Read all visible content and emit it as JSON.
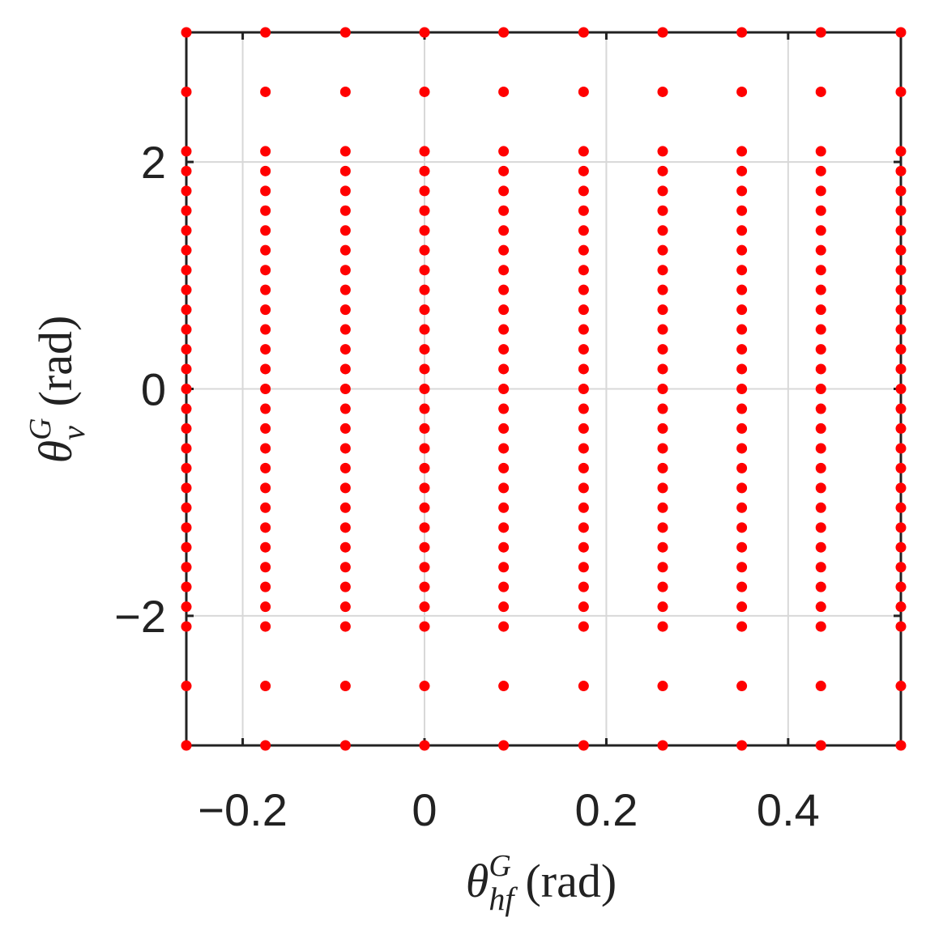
{
  "chart_data": {
    "type": "scatter",
    "xlabel": {
      "symbol": "θ",
      "sup": "G",
      "sub": "hf",
      "unit": "(rad)"
    },
    "ylabel": {
      "symbol": "θ",
      "sup": "G",
      "sub": "ν",
      "unit": "(rad)"
    },
    "color": "#ff0000",
    "xlim": [
      -0.262,
      0.524
    ],
    "ylim": [
      -3.142,
      3.142
    ],
    "xticks": [
      {
        "value": -0.2,
        "label": "−0.2"
      },
      0,
      0.2,
      0.4
    ],
    "yticks": [
      {
        "value": -2,
        "label": "−2"
      },
      0,
      2
    ],
    "grid": true,
    "columns": [
      {
        "x": -0.262,
        "y": [
          3.142,
          2.618,
          2.094,
          1.92,
          1.745,
          1.571,
          1.396,
          1.222,
          1.047,
          0.873,
          0.698,
          0.524,
          0.349,
          0.175,
          0,
          -0.175,
          -0.349,
          -0.524,
          -0.698,
          -0.873,
          -1.047,
          -1.222,
          -1.396,
          -1.571,
          -1.745,
          -1.92,
          -2.094,
          -2.618,
          -3.142
        ]
      },
      {
        "x": -0.175,
        "y": [
          3.142,
          2.618,
          2.094,
          1.92,
          1.745,
          1.571,
          1.396,
          1.222,
          1.047,
          0.873,
          0.698,
          0.524,
          0.349,
          0.175,
          0,
          -0.175,
          -0.349,
          -0.524,
          -0.698,
          -0.873,
          -1.047,
          -1.222,
          -1.396,
          -1.571,
          -1.745,
          -1.92,
          -2.094,
          -2.618,
          -3.142
        ]
      },
      {
        "x": -0.087,
        "y": [
          3.142,
          2.618,
          2.094,
          1.92,
          1.745,
          1.571,
          1.396,
          1.222,
          1.047,
          0.873,
          0.698,
          0.524,
          0.349,
          0.175,
          0,
          -0.175,
          -0.349,
          -0.524,
          -0.698,
          -0.873,
          -1.047,
          -1.222,
          -1.396,
          -1.571,
          -1.745,
          -1.92,
          -2.094,
          -2.618,
          -3.142
        ]
      },
      {
        "x": 0,
        "y": [
          3.142,
          2.618,
          2.094,
          1.92,
          1.745,
          1.571,
          1.396,
          1.222,
          1.047,
          0.873,
          0.698,
          0.524,
          0.349,
          0.175,
          0,
          -0.175,
          -0.349,
          -0.524,
          -0.698,
          -0.873,
          -1.047,
          -1.222,
          -1.396,
          -1.571,
          -1.745,
          -1.92,
          -2.094,
          -2.618,
          -3.142
        ]
      },
      {
        "x": 0.087,
        "y": [
          3.142,
          2.618,
          2.094,
          1.92,
          1.745,
          1.571,
          1.396,
          1.222,
          1.047,
          0.873,
          0.698,
          0.524,
          0.349,
          0.175,
          0,
          -0.175,
          -0.349,
          -0.524,
          -0.698,
          -0.873,
          -1.047,
          -1.222,
          -1.396,
          -1.571,
          -1.745,
          -1.92,
          -2.094,
          -2.618,
          -3.142
        ]
      },
      {
        "x": 0.175,
        "y": [
          3.142,
          2.618,
          2.094,
          1.92,
          1.745,
          1.571,
          1.396,
          1.222,
          1.047,
          0.873,
          0.698,
          0.524,
          0.349,
          0.175,
          0,
          -0.175,
          -0.349,
          -0.524,
          -0.698,
          -0.873,
          -1.047,
          -1.222,
          -1.396,
          -1.571,
          -1.745,
          -1.92,
          -2.094,
          -2.618,
          -3.142
        ]
      },
      {
        "x": 0.262,
        "y": [
          3.142,
          2.618,
          2.094,
          1.92,
          1.745,
          1.571,
          1.396,
          1.222,
          1.047,
          0.873,
          0.698,
          0.524,
          0.349,
          0.175,
          0,
          -0.175,
          -0.349,
          -0.524,
          -0.698,
          -0.873,
          -1.047,
          -1.222,
          -1.396,
          -1.571,
          -1.745,
          -1.92,
          -2.094,
          -2.618,
          -3.142
        ]
      },
      {
        "x": 0.349,
        "y": [
          3.142,
          2.618,
          2.094,
          1.92,
          1.745,
          1.571,
          1.396,
          1.222,
          1.047,
          0.873,
          0.698,
          0.524,
          0.349,
          0.175,
          0,
          -0.175,
          -0.349,
          -0.524,
          -0.698,
          -0.873,
          -1.047,
          -1.222,
          -1.396,
          -1.571,
          -1.745,
          -1.92,
          -2.094,
          -2.618,
          -3.142
        ]
      },
      {
        "x": 0.436,
        "y": [
          3.142,
          2.618,
          2.094,
          1.92,
          1.745,
          1.571,
          1.396,
          1.222,
          1.047,
          0.873,
          0.698,
          0.524,
          0.349,
          0.175,
          0,
          -0.175,
          -0.349,
          -0.524,
          -0.698,
          -0.873,
          -1.047,
          -1.222,
          -1.396,
          -1.571,
          -1.745,
          -1.92,
          -2.094,
          -2.618,
          -3.142
        ]
      },
      {
        "x": 0.524,
        "y": [
          3.142,
          2.618,
          2.094,
          1.92,
          1.745,
          1.571,
          1.396,
          1.222,
          1.047,
          0.873,
          0.698,
          0.524,
          0.349,
          0.175,
          0,
          -0.175,
          -0.349,
          -0.524,
          -0.698,
          -0.873,
          -1.047,
          -1.222,
          -1.396,
          -1.571,
          -1.745,
          -1.92,
          -2.094,
          -2.618,
          -3.142
        ]
      }
    ]
  }
}
